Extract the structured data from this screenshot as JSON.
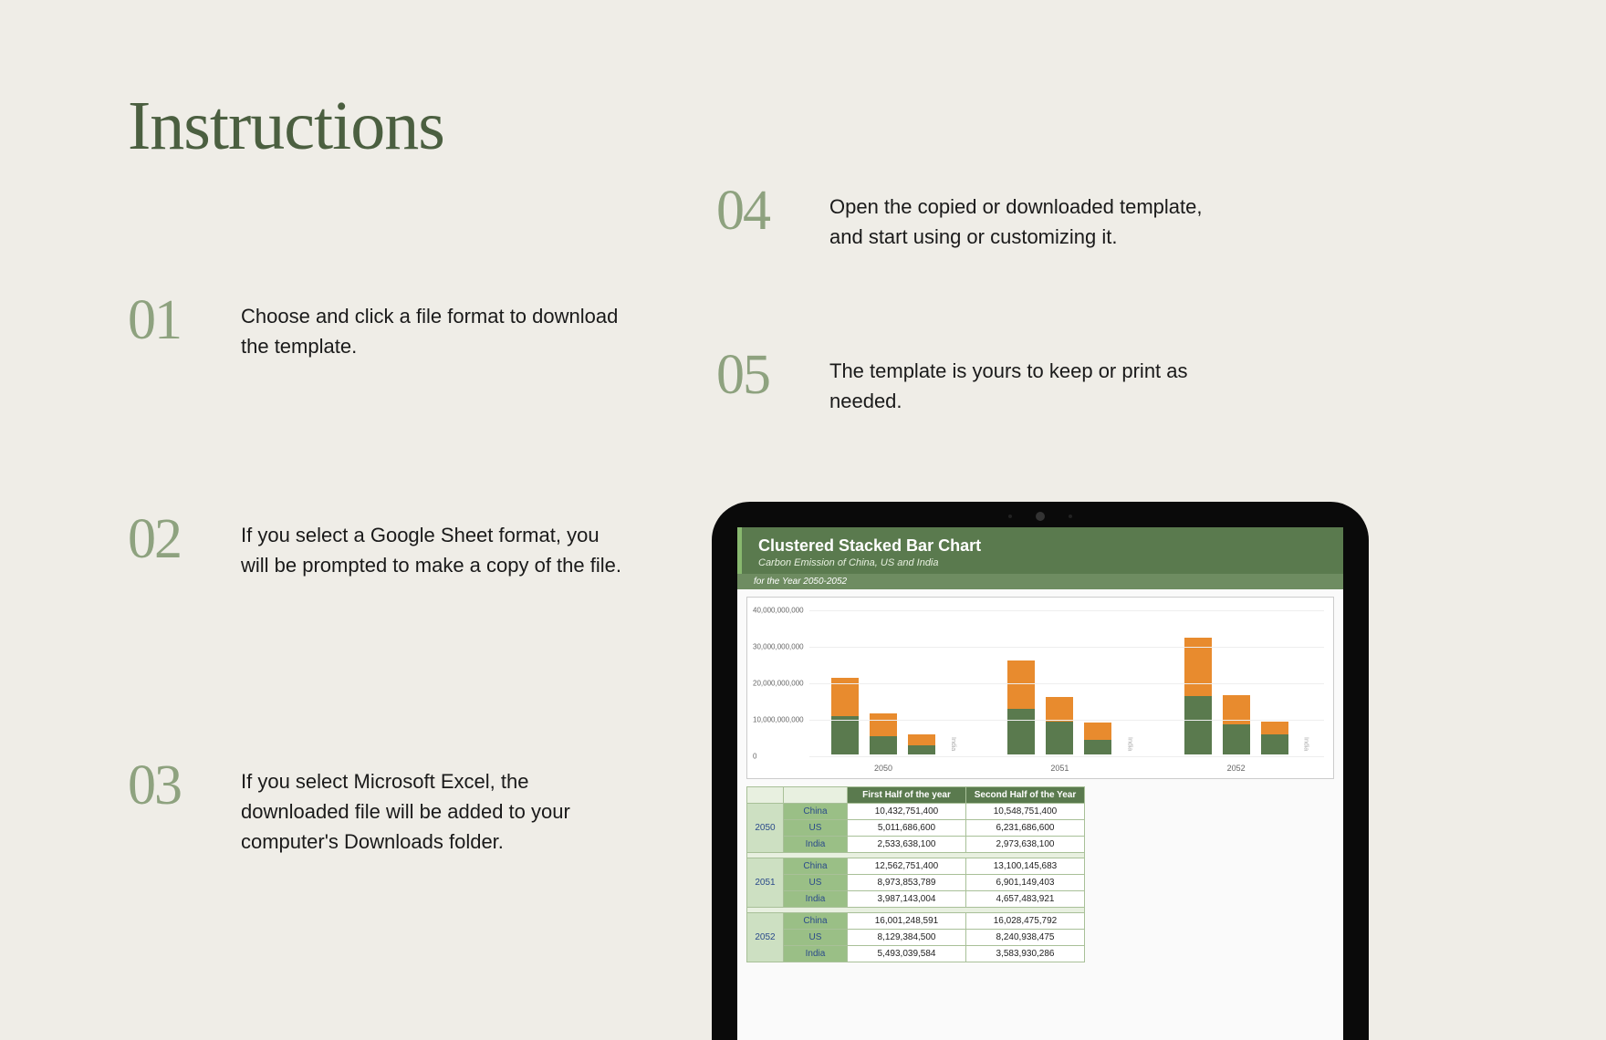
{
  "title": "Instructions",
  "steps": [
    {
      "num": "01",
      "text": "Choose and click a file format to download the template."
    },
    {
      "num": "02",
      "text": "If you select a Google Sheet format, you will be prompted to make a copy of the file."
    },
    {
      "num": "03",
      "text": "If you select Microsoft Excel, the downloaded file will be added to your computer's Downloads folder."
    },
    {
      "num": "04",
      "text": "Open the copied or downloaded template, and start using or customizing it."
    },
    {
      "num": "05",
      "text": "The template is yours to keep or print as needed."
    }
  ],
  "chart": {
    "title": "Clustered Stacked Bar Chart",
    "subtitle": "Carbon Emission of China, US and India",
    "subtitle2": "for the Year 2050-2052",
    "type": "stacked-bar",
    "colors": {
      "bottom": "#5a7a4e",
      "top": "#e88b2e",
      "bg": "#ffffff",
      "grid": "#eeeeee",
      "axis": "#666666"
    },
    "ylim": [
      0,
      40000000000
    ],
    "yticks": [
      0,
      10000000000,
      20000000000,
      30000000000,
      40000000000
    ],
    "ytick_labels": [
      "0",
      "10,000,000,000",
      "20,000,000,000",
      "30,000,000,000",
      "40,000,000,000"
    ],
    "x_years": [
      "2050",
      "2051",
      "2052"
    ],
    "groups": [
      {
        "year": "2050",
        "bars": [
          {
            "label": "China",
            "bottom": 10432751400,
            "top": 10548751400
          },
          {
            "label": "US",
            "bottom": 5011686600,
            "top": 6231686600
          },
          {
            "label": "India",
            "bottom": 2533638100,
            "top": 2973638100
          }
        ]
      },
      {
        "year": "2051",
        "bars": [
          {
            "label": "China",
            "bottom": 12562751400,
            "top": 13100145683
          },
          {
            "label": "US",
            "bottom": 8973853789,
            "top": 6901149403
          },
          {
            "label": "India",
            "bottom": 3987143004,
            "top": 4657483921
          }
        ]
      },
      {
        "year": "2052",
        "bars": [
          {
            "label": "China",
            "bottom": 16001248591,
            "top": 16028475792
          },
          {
            "label": "US",
            "bottom": 8129384500,
            "top": 8240938475
          },
          {
            "label": "India",
            "bottom": 5493039584,
            "top": 3583930286
          }
        ]
      }
    ]
  },
  "table": {
    "headers": [
      "",
      "",
      "First Half of the year",
      "Second Half of the Year"
    ],
    "sections": [
      {
        "year": "2050",
        "rows": [
          {
            "country": "China",
            "h1": "10,432,751,400",
            "h2": "10,548,751,400"
          },
          {
            "country": "US",
            "h1": "5,011,686,600",
            "h2": "6,231,686,600"
          },
          {
            "country": "India",
            "h1": "2,533,638,100",
            "h2": "2,973,638,100"
          }
        ]
      },
      {
        "year": "2051",
        "rows": [
          {
            "country": "China",
            "h1": "12,562,751,400",
            "h2": "13,100,145,683"
          },
          {
            "country": "US",
            "h1": "8,973,853,789",
            "h2": "6,901,149,403"
          },
          {
            "country": "India",
            "h1": "3,987,143,004",
            "h2": "4,657,483,921"
          }
        ]
      },
      {
        "year": "2052",
        "rows": [
          {
            "country": "China",
            "h1": "16,001,248,591",
            "h2": "16,028,475,792"
          },
          {
            "country": "US",
            "h1": "8,129,384,500",
            "h2": "8,240,938,475"
          },
          {
            "country": "India",
            "h1": "5,493,039,584",
            "h2": "3,583,930,286"
          }
        ]
      }
    ]
  },
  "colors": {
    "page_bg": "#efede7",
    "title": "#4b5f40",
    "step_num": "#8ea27f",
    "step_text": "#1a1a1a",
    "tablet": "#0a0a0a"
  }
}
